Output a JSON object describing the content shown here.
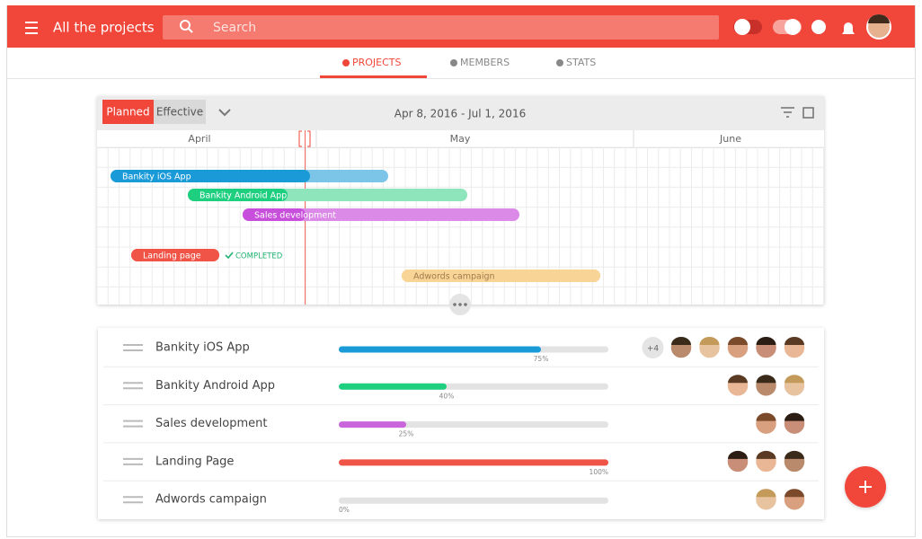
{
  "header": {
    "title": "All the projects",
    "search_placeholder": "Search"
  },
  "tabs": [
    {
      "label": "PROJECTS",
      "active": true
    },
    {
      "label": "MEMBERS",
      "active": false
    },
    {
      "label": "STATS",
      "active": false
    }
  ],
  "timeline": {
    "buttons": [
      "Planned",
      "Effective"
    ],
    "date_range": "Apr 8, 2016 - Jul 1, 2016",
    "months": [
      "April",
      "May",
      "June"
    ],
    "completed_label": "COMPLETED",
    "bars": [
      {
        "label": "Bankity iOS App",
        "color": "#1a9bd7",
        "light_color": "#7cc5e8"
      },
      {
        "label": "Bankity Android App",
        "color": "#1fcf80",
        "light_color": "#8ee5bc"
      },
      {
        "label": "Sales development",
        "color": "#c84fdb",
        "light_color": "#dc8ae7"
      },
      {
        "label": "Landing page",
        "color": "#ef5447",
        "light_color": "#ef5447"
      },
      {
        "label": "Adwords campaign",
        "color": "#f8d496",
        "light_color": "#f8d496"
      }
    ]
  },
  "projects": [
    {
      "name": "Bankity iOS App",
      "progress": {
        "value": 75,
        "label": "75%"
      },
      "color": "#1a9bd7",
      "extra_members": "+4",
      "members_shown": 5
    },
    {
      "name": "Bankity Android App",
      "progress": {
        "value": 40,
        "label": "40%"
      },
      "color": "#1fcf80",
      "members_shown": 3
    },
    {
      "name": "Sales development",
      "progress": {
        "value": 25,
        "label": "25%"
      },
      "color": "#c966dc",
      "members_shown": 2
    },
    {
      "name": "Landing Page",
      "progress": {
        "value": 100,
        "label": "100%"
      },
      "color": "#ef5447",
      "members_shown": 3
    },
    {
      "name": "Adwords campaign",
      "progress": {
        "value": 0,
        "label": "0%"
      },
      "color": "#1a9bd7",
      "members_shown": 2
    }
  ]
}
